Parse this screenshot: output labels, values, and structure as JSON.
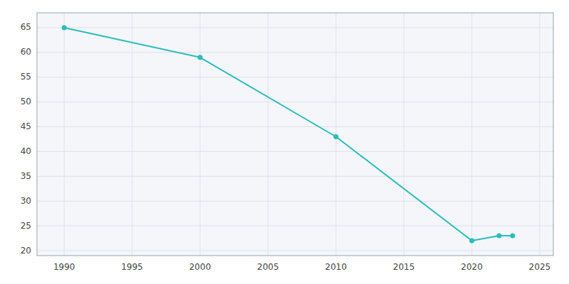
{
  "chart_data": {
    "type": "line",
    "x": [
      1990,
      2000,
      2010,
      2020,
      2022,
      2023
    ],
    "values": [
      65,
      59,
      43,
      22,
      23,
      23
    ],
    "color": "#2abcbd",
    "marker": "circle",
    "xlim": [
      1988,
      2026
    ],
    "ylim": [
      19,
      68
    ],
    "xticks": [
      1990,
      1995,
      2000,
      2005,
      2010,
      2015,
      2020,
      2025
    ],
    "yticks": [
      20,
      25,
      30,
      35,
      40,
      45,
      50,
      55,
      60,
      65
    ],
    "grid": true
  }
}
